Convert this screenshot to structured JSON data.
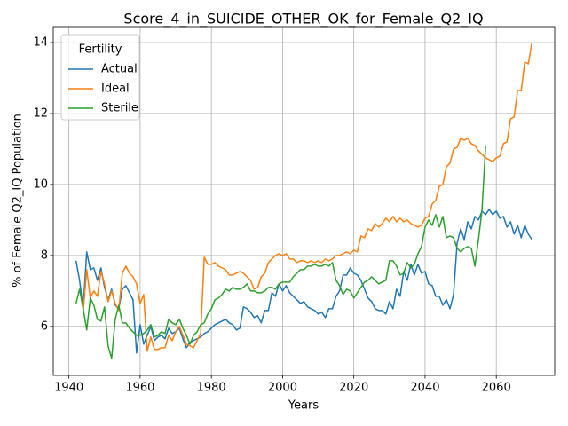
{
  "chart_data": {
    "type": "line",
    "title": "Score_4_in_SUICIDE_OTHER_OK_for_Female_Q2_IQ",
    "x_label": "Years",
    "y_label": "% of Female Q2_IQ Population",
    "x": [
      1942,
      1943,
      1944,
      1945,
      1946,
      1947,
      1948,
      1949,
      1950,
      1951,
      1952,
      1953,
      1954,
      1955,
      1956,
      1957,
      1958,
      1959,
      1960,
      1961,
      1962,
      1963,
      1964,
      1965,
      1966,
      1967,
      1968,
      1969,
      1970,
      1971,
      1972,
      1973,
      1974,
      1975,
      1976,
      1977,
      1978,
      1979,
      1980,
      1981,
      1982,
      1983,
      1984,
      1985,
      1986,
      1987,
      1988,
      1989,
      1990,
      1991,
      1992,
      1993,
      1994,
      1995,
      1996,
      1997,
      1998,
      1999,
      2000,
      2001,
      2002,
      2003,
      2004,
      2005,
      2006,
      2007,
      2008,
      2009,
      2010,
      2011,
      2012,
      2013,
      2014,
      2015,
      2016,
      2017,
      2018,
      2019,
      2020,
      2021,
      2022,
      2023,
      2024,
      2025,
      2026,
      2027,
      2028,
      2029,
      2030,
      2031,
      2032,
      2033,
      2034,
      2035,
      2036,
      2037,
      2038,
      2039,
      2040,
      2041,
      2042,
      2043,
      2044,
      2045,
      2046,
      2047,
      2048,
      2049,
      2050,
      2051,
      2052,
      2053,
      2054,
      2055,
      2056,
      2057,
      2058,
      2059,
      2060,
      2061,
      2062,
      2063,
      2064,
      2065,
      2066,
      2067,
      2068,
      2069,
      2070
    ],
    "series": [
      {
        "name": "Actual",
        "color": "#1f77b4",
        "values": [
          7.85,
          7.3,
          6.5,
          8.1,
          7.6,
          7.65,
          7.3,
          7.65,
          7.1,
          6.75,
          7.05,
          6.6,
          6.5,
          7.05,
          7.15,
          6.95,
          6.75,
          5.25,
          6.05,
          5.5,
          5.75,
          6.0,
          5.6,
          5.7,
          5.75,
          5.65,
          5.95,
          5.8,
          5.85,
          5.95,
          5.65,
          5.4,
          5.55,
          5.6,
          5.65,
          5.7,
          5.8,
          5.85,
          5.95,
          6.05,
          6.1,
          6.15,
          6.2,
          6.1,
          6.05,
          5.9,
          5.95,
          6.55,
          6.5,
          6.4,
          6.25,
          6.3,
          6.1,
          6.45,
          6.45,
          6.95,
          6.85,
          7.2,
          7.0,
          7.15,
          6.95,
          6.85,
          6.75,
          6.65,
          6.7,
          6.55,
          6.5,
          6.45,
          6.35,
          6.4,
          6.25,
          6.5,
          6.5,
          6.85,
          7.0,
          7.45,
          7.45,
          7.65,
          7.5,
          7.45,
          7.3,
          7.05,
          6.8,
          6.7,
          6.5,
          6.45,
          6.45,
          6.35,
          6.7,
          6.5,
          7.05,
          6.85,
          7.55,
          7.3,
          7.75,
          7.45,
          7.75,
          7.5,
          7.55,
          7.2,
          7.15,
          6.85,
          6.85,
          6.6,
          6.75,
          6.5,
          6.9,
          8.35,
          8.75,
          8.45,
          8.95,
          8.75,
          9.1,
          9.0,
          9.25,
          9.15,
          9.3,
          9.15,
          9.25,
          9.05,
          9.1,
          8.8,
          8.95,
          8.6,
          8.85,
          8.5,
          8.85,
          8.6,
          8.45
        ]
      },
      {
        "name": "Ideal",
        "color": "#ff7f0e",
        "values": [
          null,
          null,
          6.4,
          7.6,
          6.8,
          7.0,
          6.85,
          7.55,
          7.2,
          6.7,
          7.0,
          6.65,
          6.45,
          7.5,
          7.7,
          7.5,
          7.4,
          7.2,
          6.65,
          6.9,
          5.3,
          5.7,
          5.35,
          5.35,
          5.4,
          5.4,
          5.75,
          5.6,
          5.85,
          6.0,
          5.75,
          5.5,
          5.45,
          5.4,
          5.6,
          5.8,
          7.95,
          7.75,
          7.75,
          7.8,
          7.7,
          7.65,
          7.6,
          7.45,
          7.45,
          7.5,
          7.55,
          7.5,
          7.4,
          7.3,
          7.05,
          7.1,
          7.4,
          7.5,
          7.8,
          7.9,
          8.0,
          8.05,
          8.0,
          8.05,
          7.9,
          7.9,
          7.8,
          7.85,
          7.85,
          7.8,
          7.85,
          7.8,
          7.85,
          7.8,
          7.9,
          7.85,
          7.9,
          8.0,
          8.0,
          8.05,
          8.1,
          8.05,
          8.15,
          8.1,
          8.55,
          8.5,
          8.75,
          8.7,
          8.9,
          8.8,
          8.9,
          9.05,
          8.95,
          9.1,
          8.95,
          9.05,
          8.95,
          9.0,
          8.9,
          8.85,
          8.8,
          8.85,
          9.05,
          9.1,
          9.45,
          9.55,
          9.95,
          10.0,
          10.5,
          10.6,
          11.0,
          11.05,
          11.3,
          11.25,
          11.3,
          11.15,
          11.1,
          10.95,
          10.85,
          10.75,
          10.7,
          10.65,
          10.75,
          10.8,
          11.15,
          11.2,
          11.85,
          11.9,
          12.65,
          12.65,
          13.45,
          13.4,
          14.0
        ]
      },
      {
        "name": "Sterile",
        "color": "#2ca02c",
        "values": [
          6.65,
          7.05,
          6.5,
          5.9,
          6.8,
          6.6,
          6.2,
          6.15,
          6.55,
          5.45,
          5.1,
          6.2,
          6.6,
          6.1,
          6.1,
          5.95,
          5.85,
          5.75,
          5.75,
          5.8,
          5.9,
          6.05,
          5.7,
          5.75,
          5.85,
          5.8,
          6.2,
          6.1,
          6.05,
          6.2,
          5.95,
          5.75,
          5.5,
          5.75,
          5.85,
          6.05,
          6.1,
          6.35,
          6.5,
          6.75,
          6.8,
          6.9,
          7.05,
          7.0,
          7.1,
          7.05,
          7.05,
          7.1,
          7.2,
          7.0,
          7.0,
          6.95,
          6.95,
          7.0,
          7.1,
          7.1,
          7.05,
          7.2,
          7.25,
          7.25,
          7.25,
          7.4,
          7.5,
          7.6,
          7.6,
          7.7,
          7.7,
          7.75,
          7.7,
          7.7,
          7.75,
          7.7,
          7.8,
          7.3,
          7.15,
          6.9,
          7.05,
          7.0,
          6.8,
          6.95,
          7.1,
          7.25,
          7.3,
          7.4,
          7.3,
          7.2,
          7.25,
          7.3,
          7.85,
          7.85,
          7.7,
          7.45,
          7.5,
          7.8,
          7.65,
          7.75,
          8.05,
          8.25,
          8.8,
          9.0,
          8.85,
          9.15,
          8.8,
          9.1,
          8.5,
          8.55,
          8.5,
          8.2,
          8.1,
          8.2,
          8.25,
          8.2,
          7.7,
          8.45,
          9.3,
          11.1,
          null,
          null,
          null,
          null,
          null,
          null,
          null,
          null,
          null,
          null,
          null,
          null,
          null
        ]
      }
    ],
    "xlim": [
      1935.6,
      2076.4
    ],
    "xticks": [
      1940,
      1960,
      1980,
      2000,
      2020,
      2040,
      2060
    ],
    "ylim": [
      4.62,
      14.45
    ],
    "yticks": [
      6,
      8,
      10,
      12,
      14
    ],
    "grid": true,
    "legend": {
      "title": "Fertility",
      "loc": "upper left"
    }
  }
}
